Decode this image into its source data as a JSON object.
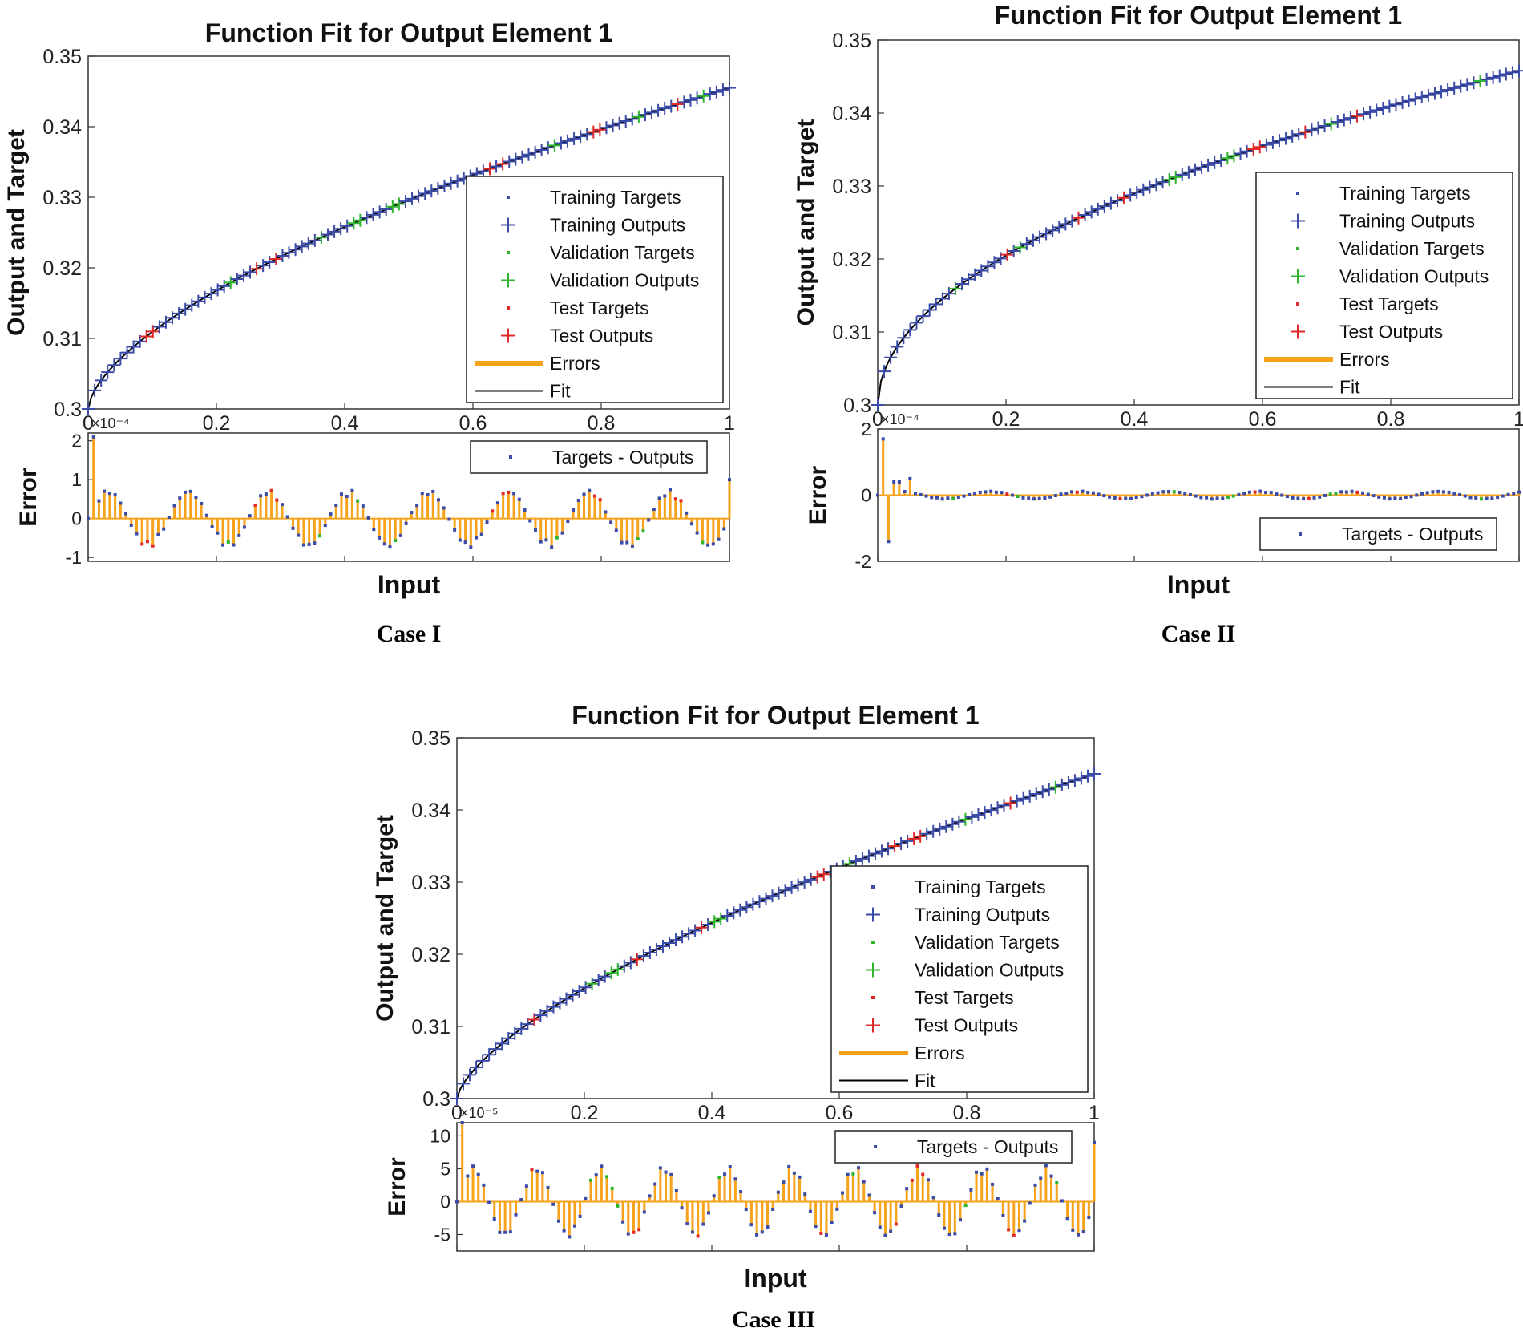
{
  "chart_data": [
    {
      "type": "line",
      "caption": "Case I",
      "title": "Function Fit for Output Element 1",
      "ylabel": "Output and Target",
      "xlabel": "Input",
      "xlim": [
        0,
        1
      ],
      "ylim": [
        0.3,
        0.35
      ],
      "xticks": [
        "0",
        "0.2",
        "0.4",
        "0.6",
        "0.8",
        "1"
      ],
      "yticks": [
        "0.3",
        "0.31",
        "0.32",
        "0.33",
        "0.34",
        "0.35"
      ],
      "fit": {
        "y0": 0.3,
        "y1": 0.3455,
        "exponent": 0.62,
        "points": 100
      },
      "validation_x": [
        0.22,
        0.36,
        0.42,
        0.48,
        0.73,
        0.86,
        0.96
      ],
      "test_x": [
        0.09,
        0.1,
        0.26,
        0.29,
        0.63,
        0.65,
        0.79,
        0.8,
        0.92
      ],
      "legend": {
        "position": "lower-right",
        "entries": [
          "Training Targets",
          "Training Outputs",
          "Validation Targets",
          "Validation Outputs",
          "Test Targets",
          "Test Outputs",
          "Errors",
          "Fit"
        ]
      },
      "error": {
        "ylabel": "Error",
        "exponent_label": "×10⁻⁴",
        "ylim": [
          -1.1,
          2.2
        ],
        "yticks": [
          -1,
          0,
          1,
          2
        ],
        "ytick_labels": [
          "-1",
          "0",
          "1",
          "2"
        ],
        "legend": "Targets - Outputs",
        "legend_position": "top-right",
        "amplitude": 0.75,
        "period": 0.125,
        "spikes": [
          {
            "x": 0.01,
            "v": 2.1
          },
          {
            "x": 1.0,
            "v": 1.0
          }
        ]
      },
      "colors": {
        "training": "#3b4ba8",
        "validation": "#2fb52f",
        "test": "#e02a2a",
        "errors": "#f7a21b",
        "fit": "#000000"
      }
    },
    {
      "type": "line",
      "caption": "Case II",
      "title": "Function Fit for Output Element 1",
      "ylabel": "Output and Target",
      "xlabel": "Input",
      "xlim": [
        0,
        1
      ],
      "ylim": [
        0.3,
        0.35
      ],
      "xticks": [
        "0",
        "0.2",
        "0.4",
        "0.6",
        "0.8",
        "1"
      ],
      "yticks": [
        "0.3",
        "0.31",
        "0.32",
        "0.33",
        "0.34",
        "0.35"
      ],
      "fit": {
        "y0": 0.3,
        "y1": 0.3458,
        "exponent": 0.5,
        "points": 100
      },
      "validation_x": [
        0.12,
        0.22,
        0.46,
        0.55,
        0.71,
        0.94
      ],
      "test_x": [
        0.2,
        0.31,
        0.38,
        0.59,
        0.67,
        0.75
      ],
      "legend": {
        "position": "lower-right",
        "entries": [
          "Training Targets",
          "Training Outputs",
          "Validation Targets",
          "Validation Outputs",
          "Test Targets",
          "Test Outputs",
          "Errors",
          "Fit"
        ]
      },
      "error": {
        "ylabel": "Error",
        "exponent_label": "×10⁻⁴",
        "ylim": [
          -2,
          2
        ],
        "yticks": [
          -2,
          0,
          2
        ],
        "ytick_labels": [
          "-2",
          "0",
          "2"
        ],
        "legend": "Targets - Outputs",
        "legend_position": "bottom-right",
        "amplitude": 0.12,
        "period": 0.14,
        "spikes": [
          {
            "x": 0.01,
            "v": 1.7
          },
          {
            "x": 0.02,
            "v": -1.4
          },
          {
            "x": 0.03,
            "v": 0.4
          },
          {
            "x": 0.05,
            "v": 0.5
          }
        ]
      },
      "colors": {
        "training": "#3b4ba8",
        "validation": "#2fb52f",
        "test": "#e02a2a",
        "errors": "#f7a21b",
        "fit": "#000000"
      }
    },
    {
      "type": "line",
      "caption": "Case III",
      "title": "Function Fit for Output Element 1",
      "ylabel": "Output and Target",
      "xlabel": "Input",
      "xlim": [
        0,
        1
      ],
      "ylim": [
        0.3,
        0.35
      ],
      "xticks": [
        "0",
        "0.2",
        "0.4",
        "0.6",
        "0.8",
        "1"
      ],
      "yticks": [
        "0.3",
        "0.31",
        "0.32",
        "0.33",
        "0.34",
        "0.35"
      ],
      "fit": {
        "y0": 0.3,
        "y1": 0.345,
        "exponent": 0.67,
        "points": 100
      },
      "validation_x": [
        0.21,
        0.24,
        0.25,
        0.41,
        0.62,
        0.8,
        0.94
      ],
      "test_x": [
        0.12,
        0.28,
        0.38,
        0.57,
        0.69,
        0.72,
        0.73,
        0.87
      ],
      "legend": {
        "position": "lower-right",
        "entries": [
          "Training Targets",
          "Training Outputs",
          "Validation Targets",
          "Validation Outputs",
          "Test Targets",
          "Test Outputs",
          "Errors",
          "Fit"
        ]
      },
      "error": {
        "ylabel": "Error",
        "exponent_label": "×10⁻⁵",
        "ylim": [
          -7.5,
          12
        ],
        "yticks": [
          -5,
          0,
          5,
          10
        ],
        "ytick_labels": [
          "-5",
          "0",
          "5",
          "10"
        ],
        "legend": "Targets - Outputs",
        "legend_position": "top-right",
        "amplitude": 5.5,
        "period": 0.1,
        "spikes": [
          {
            "x": 0.01,
            "v": 12
          },
          {
            "x": 1.0,
            "v": 9
          }
        ]
      },
      "colors": {
        "training": "#3b4ba8",
        "validation": "#2fb52f",
        "test": "#e02a2a",
        "errors": "#f7a21b",
        "fit": "#000000"
      }
    }
  ]
}
